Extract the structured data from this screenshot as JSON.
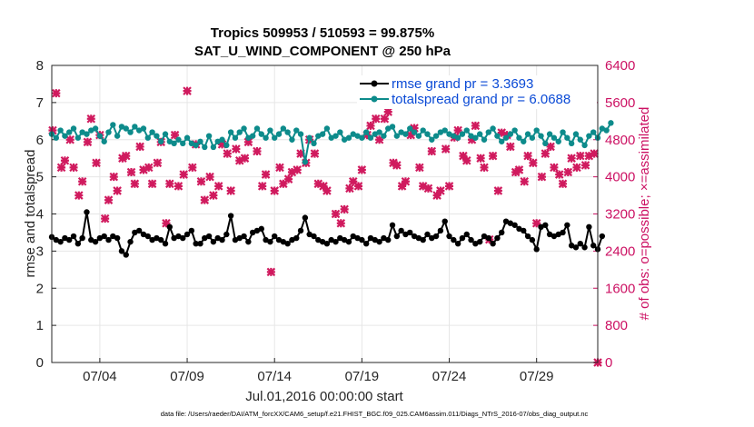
{
  "chart_data": {
    "type": "line",
    "title": "Tropics 509953 / 510593 = 99.875%",
    "subtitle": "SAT_U_WIND_COMPONENT @ 250 hPa",
    "xlabel": "Jul.01,2016 00:00:00 start",
    "ylabel": "rmse and totalspread",
    "ylabel_right": "# of obs: o=possible; ×=assimilated",
    "x_ticks": [
      "07/04",
      "07/09",
      "07/14",
      "07/19",
      "07/24",
      "07/29"
    ],
    "x_tick_values": [
      4,
      9,
      14,
      19,
      24,
      29
    ],
    "xlim": [
      1.25,
      32.5
    ],
    "ylim": [
      0,
      8
    ],
    "y_ticks": [
      "0",
      "1",
      "2",
      "3",
      "4",
      "5",
      "6",
      "7",
      "8"
    ],
    "ylim_right": [
      0,
      6400
    ],
    "y_ticks_right": [
      "0",
      "800",
      "1600",
      "2400",
      "3200",
      "4000",
      "4800",
      "5600",
      "6400"
    ],
    "grid": true,
    "legend_position": "top-right",
    "footer": "data file: /Users/raeder/DAI/ATM_forcXX/CAM6_setup/f.e21.FHIST_BGC.f09_025.CAM6assim.011/Diags_NTrS_2016-07/obs_diag_output.nc",
    "colors": {
      "rmse": "#000000",
      "totalspread": "#0d8b8b",
      "obs": "#d01a5e",
      "legend_text": "#0a4ad6"
    },
    "series": [
      {
        "name": "rmse grand pr = 3.3693",
        "axis": "left",
        "x_start": 1.25,
        "x_step": 0.25,
        "values": [
          3.38,
          3.3,
          3.25,
          3.35,
          3.3,
          3.4,
          3.2,
          3.35,
          4.05,
          3.3,
          3.25,
          3.35,
          3.4,
          3.3,
          3.4,
          3.35,
          3.0,
          2.9,
          3.25,
          3.5,
          3.55,
          3.45,
          3.4,
          3.3,
          3.35,
          3.3,
          3.2,
          3.65,
          3.35,
          3.4,
          3.35,
          3.45,
          3.55,
          3.2,
          3.2,
          3.35,
          3.4,
          3.25,
          3.35,
          3.3,
          3.45,
          3.95,
          3.3,
          3.35,
          3.4,
          3.25,
          3.5,
          3.55,
          3.6,
          3.3,
          3.25,
          3.4,
          3.3,
          3.25,
          3.2,
          3.3,
          3.35,
          3.55,
          3.9,
          3.45,
          3.4,
          3.3,
          3.25,
          3.2,
          3.3,
          3.25,
          3.35,
          3.3,
          3.25,
          3.4,
          3.35,
          3.3,
          3.2,
          3.35,
          3.3,
          3.25,
          3.35,
          3.3,
          3.7,
          3.4,
          3.55,
          3.45,
          3.5,
          3.4,
          3.35,
          3.3,
          3.45,
          3.35,
          3.4,
          3.55,
          3.8,
          3.4,
          3.3,
          3.2,
          3.35,
          3.45,
          3.3,
          3.2,
          3.25,
          3.4,
          3.35,
          3.2,
          3.35,
          3.5,
          3.8,
          3.75,
          3.7,
          3.6,
          3.55,
          3.4,
          3.3,
          3.05,
          3.65,
          3.7,
          3.45,
          3.4,
          3.45,
          3.5,
          3.7,
          3.15,
          3.1,
          3.2,
          3.1,
          3.65,
          3.15,
          3.05,
          3.4
        ]
      },
      {
        "name": "totalspread grand pr = 6.0688",
        "axis": "left",
        "x_start": 1.25,
        "x_step": 0.25,
        "values": [
          6.15,
          6.05,
          6.25,
          6.1,
          6.2,
          6.3,
          6.05,
          6.2,
          6.15,
          6.25,
          6.3,
          6.1,
          5.95,
          6.2,
          6.4,
          6.1,
          6.35,
          6.3,
          6.2,
          6.35,
          6.25,
          6.3,
          6.05,
          6.2,
          6.1,
          5.95,
          6.15,
          5.95,
          5.9,
          6.0,
          5.9,
          6.05,
          5.9,
          5.85,
          5.95,
          5.8,
          6.1,
          5.8,
          5.95,
          6.0,
          5.85,
          6.2,
          6.05,
          6.2,
          6.3,
          6.05,
          6.1,
          6.3,
          6.15,
          6.05,
          6.25,
          6.05,
          6.15,
          6.3,
          6.2,
          6.0,
          6.25,
          6.15,
          5.4,
          6.05,
          5.9,
          6.1,
          6.15,
          6.3,
          6.05,
          6.1,
          6.2,
          6.0,
          6.05,
          6.15,
          6.1,
          6.05,
          6.2,
          6.05,
          6.15,
          6.2,
          6.1,
          6.3,
          6.35,
          6.1,
          6.2,
          6.15,
          6.3,
          6.2,
          6.1,
          6.25,
          6.15,
          6.0,
          6.1,
          6.2,
          6.25,
          6.15,
          6.1,
          6.05,
          6.15,
          6.25,
          6.1,
          6.05,
          6.15,
          6.0,
          6.2,
          6.3,
          6.1,
          5.95,
          6.05,
          6.15,
          6.25,
          6.05,
          5.95,
          6.15,
          6.05,
          6.25,
          6.1,
          5.9,
          6.15,
          6.05,
          5.95,
          6.2,
          6.05,
          5.9,
          6.15,
          6.0,
          5.85,
          6.1,
          6.2,
          6.05,
          6.3,
          6.25,
          6.45
        ]
      },
      {
        "name": "obs assimilated",
        "axis": "right",
        "style": "markers",
        "points": [
          [
            1.3,
            5000
          ],
          [
            1.5,
            5800
          ],
          [
            1.8,
            4200
          ],
          [
            2.0,
            4350
          ],
          [
            2.3,
            4800
          ],
          [
            2.5,
            4200
          ],
          [
            2.8,
            3600
          ],
          [
            3.0,
            3900
          ],
          [
            3.3,
            4750
          ],
          [
            3.5,
            5250
          ],
          [
            3.8,
            4300
          ],
          [
            4.0,
            4900
          ],
          [
            4.3,
            3100
          ],
          [
            4.5,
            3500
          ],
          [
            4.8,
            4000
          ],
          [
            5.0,
            3700
          ],
          [
            5.3,
            4400
          ],
          [
            5.5,
            4450
          ],
          [
            5.8,
            4100
          ],
          [
            6.0,
            3850
          ],
          [
            6.3,
            4650
          ],
          [
            6.5,
            4150
          ],
          [
            6.8,
            4200
          ],
          [
            7.0,
            3850
          ],
          [
            7.3,
            4300
          ],
          [
            7.5,
            4750
          ],
          [
            7.8,
            3000
          ],
          [
            8.0,
            3850
          ],
          [
            8.3,
            4900
          ],
          [
            8.5,
            3800
          ],
          [
            8.8,
            4050
          ],
          [
            9.0,
            5850
          ],
          [
            9.3,
            4200
          ],
          [
            9.5,
            4700
          ],
          [
            9.8,
            3900
          ],
          [
            10.0,
            3500
          ],
          [
            10.3,
            4000
          ],
          [
            10.5,
            3600
          ],
          [
            10.8,
            3800
          ],
          [
            11.0,
            4700
          ],
          [
            11.3,
            4500
          ],
          [
            11.5,
            3700
          ],
          [
            11.8,
            4600
          ],
          [
            12.0,
            4350
          ],
          [
            12.3,
            4400
          ],
          [
            12.5,
            4750
          ],
          [
            13.0,
            4550
          ],
          [
            13.3,
            3800
          ],
          [
            13.5,
            4050
          ],
          [
            13.8,
            1950
          ],
          [
            14.0,
            3700
          ],
          [
            14.3,
            4200
          ],
          [
            14.5,
            3850
          ],
          [
            14.8,
            3950
          ],
          [
            15.0,
            4100
          ],
          [
            15.3,
            4150
          ],
          [
            15.5,
            4500
          ],
          [
            15.8,
            4300
          ],
          [
            16.0,
            4800
          ],
          [
            16.3,
            4500
          ],
          [
            16.5,
            3850
          ],
          [
            16.8,
            3800
          ],
          [
            17.0,
            3700
          ],
          [
            17.5,
            3200
          ],
          [
            17.8,
            3000
          ],
          [
            18.0,
            3300
          ],
          [
            18.3,
            3750
          ],
          [
            18.5,
            3900
          ],
          [
            18.8,
            3800
          ],
          [
            19.0,
            4150
          ],
          [
            19.3,
            4900
          ],
          [
            19.5,
            5100
          ],
          [
            19.8,
            5250
          ],
          [
            20.0,
            4800
          ],
          [
            20.3,
            5250
          ],
          [
            20.5,
            5400
          ],
          [
            20.8,
            4300
          ],
          [
            21.0,
            4250
          ],
          [
            21.3,
            3800
          ],
          [
            21.5,
            3900
          ],
          [
            21.8,
            4900
          ],
          [
            22.0,
            5050
          ],
          [
            22.3,
            4200
          ],
          [
            22.5,
            3800
          ],
          [
            22.8,
            3750
          ],
          [
            23.0,
            4550
          ],
          [
            23.3,
            3600
          ],
          [
            23.5,
            3700
          ],
          [
            23.8,
            4600
          ],
          [
            24.0,
            3800
          ],
          [
            24.3,
            4850
          ],
          [
            24.5,
            5000
          ],
          [
            24.8,
            4450
          ],
          [
            25.0,
            4350
          ],
          [
            25.3,
            4800
          ],
          [
            25.5,
            5100
          ],
          [
            25.8,
            4400
          ],
          [
            26.0,
            4200
          ],
          [
            26.3,
            2650
          ],
          [
            26.5,
            4450
          ],
          [
            26.8,
            3700
          ],
          [
            27.0,
            4950
          ],
          [
            27.3,
            4900
          ],
          [
            27.5,
            4650
          ],
          [
            27.8,
            4100
          ],
          [
            28.0,
            4150
          ],
          [
            28.3,
            3900
          ],
          [
            28.5,
            4450
          ],
          [
            28.8,
            4300
          ],
          [
            29.0,
            3000
          ],
          [
            29.3,
            4000
          ],
          [
            29.5,
            4500
          ],
          [
            29.8,
            4650
          ],
          [
            30.0,
            4200
          ],
          [
            30.3,
            4050
          ],
          [
            30.5,
            3850
          ],
          [
            30.8,
            4100
          ],
          [
            31.0,
            4400
          ],
          [
            31.3,
            4200
          ],
          [
            31.5,
            4450
          ],
          [
            31.8,
            4250
          ],
          [
            32.0,
            4450
          ],
          [
            32.3,
            4500
          ],
          [
            32.5,
            0
          ]
        ]
      }
    ]
  }
}
